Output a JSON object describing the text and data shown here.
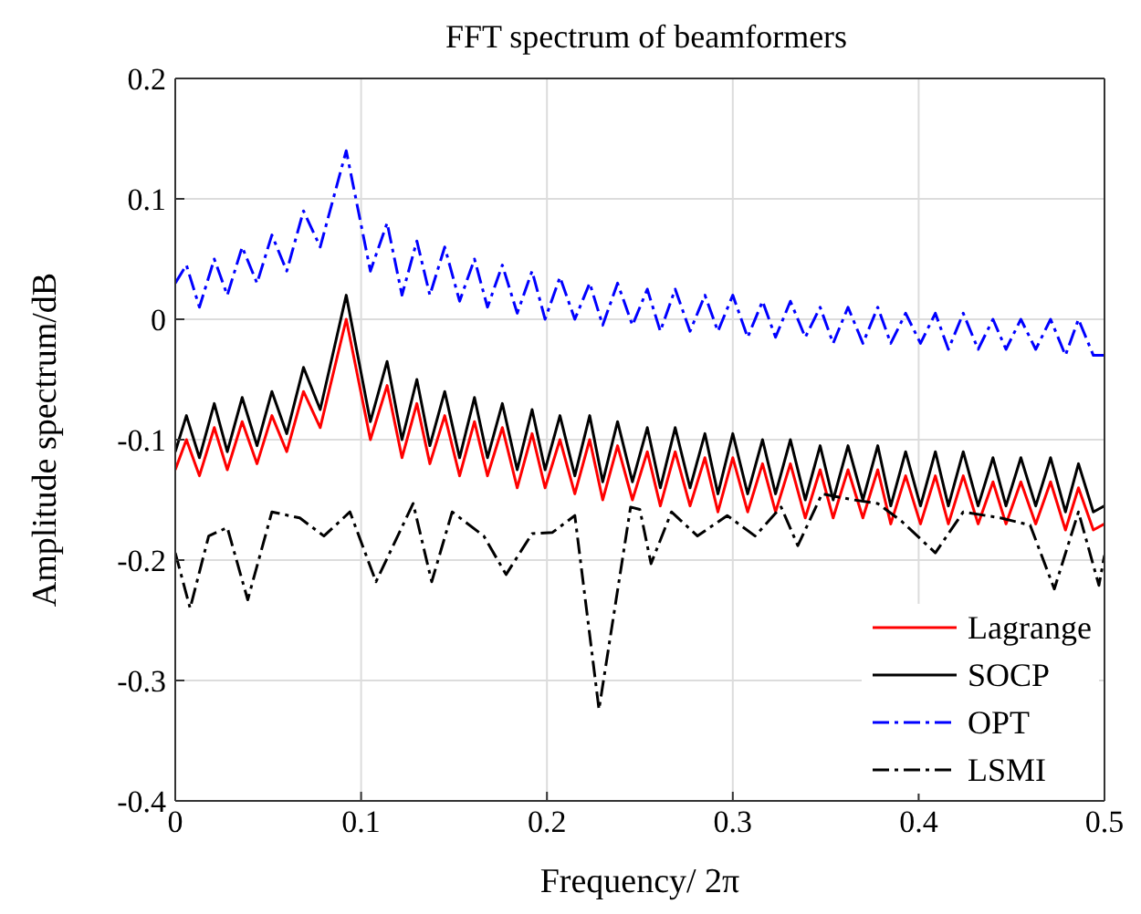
{
  "chart_data": {
    "type": "line",
    "title": "FFT spectrum of beamformers",
    "xlabel": "Frequency/ 2π",
    "ylabel": "Amplitude spectrum/dB",
    "xlim": [
      0,
      0.5
    ],
    "xticks": [
      0,
      0.1,
      0.2,
      0.3,
      0.4,
      0.5
    ],
    "ylim": [
      -0.4,
      0.2
    ],
    "yticks": [
      -0.4,
      -0.3,
      -0.2,
      -0.1,
      0,
      0.1,
      0.2
    ],
    "grid": true,
    "legend": "bottom right",
    "marker": "none",
    "series": [
      {
        "name": "Lagrange",
        "color": "#ff0000",
        "line_style": "solid",
        "x": [
          0,
          0.006,
          0.013,
          0.021,
          0.028,
          0.036,
          0.044,
          0.052,
          0.06,
          0.069,
          0.078,
          0.092,
          0.105,
          0.114,
          0.122,
          0.13,
          0.137,
          0.145,
          0.153,
          0.161,
          0.168,
          0.176,
          0.184,
          0.192,
          0.199,
          0.207,
          0.215,
          0.223,
          0.23,
          0.238,
          0.246,
          0.254,
          0.261,
          0.269,
          0.277,
          0.285,
          0.292,
          0.3,
          0.308,
          0.316,
          0.323,
          0.331,
          0.339,
          0.347,
          0.354,
          0.362,
          0.37,
          0.378,
          0.385,
          0.393,
          0.401,
          0.409,
          0.416,
          0.424,
          0.432,
          0.44,
          0.447,
          0.455,
          0.463,
          0.471,
          0.479,
          0.486,
          0.494,
          0.5
        ],
        "values": [
          -0.125,
          -0.1,
          -0.13,
          -0.09,
          -0.125,
          -0.085,
          -0.12,
          -0.08,
          -0.11,
          -0.06,
          -0.09,
          0.0,
          -0.1,
          -0.055,
          -0.115,
          -0.07,
          -0.12,
          -0.08,
          -0.13,
          -0.085,
          -0.13,
          -0.09,
          -0.14,
          -0.095,
          -0.14,
          -0.1,
          -0.145,
          -0.1,
          -0.15,
          -0.105,
          -0.15,
          -0.11,
          -0.155,
          -0.11,
          -0.155,
          -0.115,
          -0.16,
          -0.115,
          -0.16,
          -0.12,
          -0.16,
          -0.12,
          -0.165,
          -0.125,
          -0.165,
          -0.125,
          -0.165,
          -0.125,
          -0.17,
          -0.13,
          -0.17,
          -0.13,
          -0.17,
          -0.13,
          -0.17,
          -0.135,
          -0.17,
          -0.135,
          -0.17,
          -0.135,
          -0.175,
          -0.14,
          -0.175,
          -0.17
        ]
      },
      {
        "name": "SOCP",
        "color": "#000000",
        "line_style": "solid",
        "x": [
          0,
          0.006,
          0.013,
          0.021,
          0.028,
          0.036,
          0.044,
          0.052,
          0.06,
          0.069,
          0.078,
          0.092,
          0.105,
          0.114,
          0.122,
          0.13,
          0.137,
          0.145,
          0.153,
          0.161,
          0.168,
          0.176,
          0.184,
          0.192,
          0.199,
          0.207,
          0.215,
          0.223,
          0.23,
          0.238,
          0.246,
          0.254,
          0.261,
          0.269,
          0.277,
          0.285,
          0.292,
          0.3,
          0.308,
          0.316,
          0.323,
          0.331,
          0.339,
          0.347,
          0.354,
          0.362,
          0.37,
          0.378,
          0.385,
          0.393,
          0.401,
          0.409,
          0.416,
          0.424,
          0.432,
          0.44,
          0.447,
          0.455,
          0.463,
          0.471,
          0.479,
          0.486,
          0.494,
          0.5
        ],
        "values": [
          -0.11,
          -0.08,
          -0.115,
          -0.07,
          -0.11,
          -0.065,
          -0.105,
          -0.06,
          -0.095,
          -0.04,
          -0.075,
          0.02,
          -0.085,
          -0.035,
          -0.1,
          -0.05,
          -0.105,
          -0.06,
          -0.115,
          -0.065,
          -0.115,
          -0.07,
          -0.125,
          -0.075,
          -0.125,
          -0.08,
          -0.13,
          -0.08,
          -0.135,
          -0.085,
          -0.135,
          -0.09,
          -0.14,
          -0.09,
          -0.14,
          -0.095,
          -0.145,
          -0.095,
          -0.145,
          -0.1,
          -0.145,
          -0.1,
          -0.15,
          -0.105,
          -0.15,
          -0.105,
          -0.15,
          -0.105,
          -0.155,
          -0.11,
          -0.155,
          -0.11,
          -0.155,
          -0.11,
          -0.155,
          -0.115,
          -0.155,
          -0.115,
          -0.155,
          -0.115,
          -0.16,
          -0.12,
          -0.16,
          -0.155
        ]
      },
      {
        "name": "OPT",
        "color": "#0000ff",
        "line_style": "dashdot",
        "x": [
          0,
          0.006,
          0.013,
          0.021,
          0.028,
          0.036,
          0.044,
          0.052,
          0.06,
          0.069,
          0.078,
          0.092,
          0.105,
          0.114,
          0.122,
          0.13,
          0.137,
          0.145,
          0.153,
          0.161,
          0.168,
          0.176,
          0.184,
          0.192,
          0.199,
          0.207,
          0.215,
          0.223,
          0.23,
          0.238,
          0.246,
          0.254,
          0.261,
          0.269,
          0.277,
          0.285,
          0.292,
          0.3,
          0.308,
          0.316,
          0.323,
          0.331,
          0.339,
          0.347,
          0.354,
          0.362,
          0.37,
          0.378,
          0.385,
          0.393,
          0.401,
          0.409,
          0.416,
          0.424,
          0.432,
          0.44,
          0.447,
          0.455,
          0.463,
          0.471,
          0.479,
          0.486,
          0.494,
          0.5
        ],
        "values": [
          0.03,
          0.045,
          0.01,
          0.05,
          0.02,
          0.06,
          0.03,
          0.07,
          0.04,
          0.09,
          0.06,
          0.14,
          0.04,
          0.08,
          0.02,
          0.065,
          0.02,
          0.06,
          0.015,
          0.05,
          0.01,
          0.045,
          0.005,
          0.04,
          0.0,
          0.035,
          0.0,
          0.03,
          -0.005,
          0.03,
          -0.005,
          0.025,
          -0.01,
          0.025,
          -0.01,
          0.02,
          -0.01,
          0.02,
          -0.015,
          0.015,
          -0.015,
          0.015,
          -0.015,
          0.01,
          -0.02,
          0.01,
          -0.02,
          0.01,
          -0.02,
          0.005,
          -0.02,
          0.005,
          -0.025,
          0.005,
          -0.025,
          0.0,
          -0.025,
          0.0,
          -0.025,
          0.0,
          -0.03,
          0.0,
          -0.03,
          -0.03
        ]
      },
      {
        "name": "LSMI",
        "color": "#000000",
        "line_style": "dashdot",
        "x": [
          0,
          0.008,
          0.018,
          0.028,
          0.039,
          0.052,
          0.067,
          0.08,
          0.094,
          0.108,
          0.128,
          0.138,
          0.149,
          0.166,
          0.178,
          0.192,
          0.203,
          0.215,
          0.228,
          0.245,
          0.25,
          0.256,
          0.267,
          0.281,
          0.297,
          0.312,
          0.326,
          0.335,
          0.348,
          0.365,
          0.378,
          0.391,
          0.409,
          0.424,
          0.444,
          0.46,
          0.473,
          0.486,
          0.497,
          0.5
        ],
        "values": [
          -0.194,
          -0.24,
          -0.18,
          -0.173,
          -0.233,
          -0.16,
          -0.165,
          -0.18,
          -0.16,
          -0.218,
          -0.153,
          -0.218,
          -0.16,
          -0.18,
          -0.212,
          -0.178,
          -0.177,
          -0.163,
          -0.324,
          -0.156,
          -0.158,
          -0.203,
          -0.16,
          -0.18,
          -0.163,
          -0.18,
          -0.156,
          -0.188,
          -0.145,
          -0.15,
          -0.153,
          -0.168,
          -0.194,
          -0.16,
          -0.165,
          -0.171,
          -0.224,
          -0.16,
          -0.221,
          -0.196
        ]
      }
    ]
  }
}
